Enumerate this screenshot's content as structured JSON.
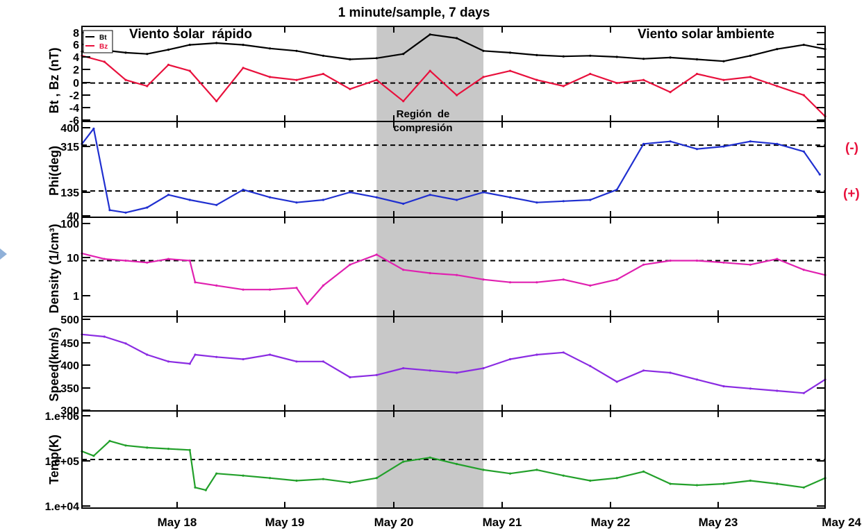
{
  "chart_data": {
    "type": "line",
    "title": "1 minute/sample, 7 days",
    "x_tick_labels": [
      "May 18",
      "May 19",
      "May 20",
      "May 21",
      "May 22",
      "May 23",
      "May 24"
    ],
    "shaded_region": {
      "x_start": "May 19 18:00",
      "x_end": "May 20 18:00",
      "color": "#c8c8c8"
    },
    "annotations": {
      "fast_wind": "Viento solar  rápido",
      "ambient_wind": "Viento solar ambiente",
      "compression_line1": "Región  de",
      "compression_line2": "compresión",
      "sector_negative": "(-)",
      "sector_positive": "(+)"
    },
    "panels": [
      {
        "id": "b",
        "ylabel": "Bt  , Bz  (nT)",
        "ylim": [
          -6,
          9
        ],
        "yticks": [
          "8",
          "6",
          "4",
          "2",
          "0",
          "-2",
          "-4",
          "-6"
        ],
        "reference_lines": [
          0
        ],
        "legend": [
          "Bt",
          "Bz"
        ],
        "series": [
          {
            "name": "Bt",
            "color": "#000000",
            "x": [
              16.99,
              17.2,
              17.4,
              17.6,
              17.8,
              18.0,
              18.25,
              18.5,
              18.75,
              19.0,
              19.25,
              19.5,
              19.75,
              20.0,
              20.25,
              20.5,
              20.75,
              21.0,
              21.25,
              21.5,
              21.75,
              22.0,
              22.25,
              22.5,
              22.75,
              23.0,
              23.25,
              23.5,
              23.75,
              23.95
            ],
            "y": [
              5.2,
              5.4,
              5.0,
              4.8,
              5.5,
              6.3,
              6.6,
              6.3,
              5.7,
              5.3,
              4.5,
              3.9,
              4.1,
              4.8,
              8.0,
              7.4,
              5.3,
              5.0,
              4.6,
              4.4,
              4.5,
              4.3,
              4.0,
              4.2,
              3.9,
              3.6,
              4.5,
              5.6,
              6.3,
              5.6
            ]
          },
          {
            "name": "Bz",
            "color": "#e8103c",
            "x": [
              16.99,
              17.2,
              17.4,
              17.6,
              17.8,
              18.0,
              18.25,
              18.5,
              18.75,
              19.0,
              19.25,
              19.5,
              19.75,
              20.0,
              20.25,
              20.5,
              20.75,
              21.0,
              21.25,
              21.5,
              21.75,
              22.0,
              22.25,
              22.5,
              22.75,
              23.0,
              23.25,
              23.5,
              23.75,
              23.95
            ],
            "y": [
              4.5,
              3.5,
              0.5,
              -0.5,
              3.0,
              2.0,
              -3.0,
              2.5,
              1.0,
              0.5,
              1.5,
              -1.0,
              0.5,
              -3.0,
              2.0,
              -2.0,
              1.0,
              2.0,
              0.5,
              -0.5,
              1.5,
              0.0,
              0.5,
              -1.5,
              1.5,
              0.5,
              1.0,
              -0.5,
              -2.0,
              -5.5
            ]
          }
        ]
      },
      {
        "id": "phi",
        "ylabel": "Phi(deg)",
        "ylim": [
          40,
          400
        ],
        "yticks": [
          "400",
          "315",
          "135",
          "40"
        ],
        "reference_lines": [
          315,
          135
        ],
        "series": [
          {
            "name": "",
            "color": "#1f2fd0",
            "x": [
              16.99,
              17.1,
              17.25,
              17.4,
              17.6,
              17.8,
              18.0,
              18.25,
              18.5,
              18.75,
              19.0,
              19.25,
              19.5,
              19.75,
              20.0,
              20.25,
              20.5,
              20.75,
              21.0,
              21.25,
              21.5,
              21.75,
              22.0,
              22.25,
              22.5,
              22.75,
              23.0,
              23.25,
              23.5,
              23.75,
              23.9
            ],
            "y": [
              320,
              380,
              60,
              50,
              70,
              120,
              100,
              80,
              140,
              110,
              90,
              100,
              130,
              110,
              85,
              120,
              100,
              130,
              110,
              90,
              95,
              100,
              140,
              320,
              330,
              300,
              310,
              330,
              320,
              290,
              200
            ]
          }
        ]
      },
      {
        "id": "density",
        "ylabel": "Density (1/cm³)",
        "ylim": [
          0.5,
          100
        ],
        "log_scale": true,
        "yticks": [
          "100",
          "10",
          "1"
        ],
        "reference_lines": [
          10
        ],
        "series": [
          {
            "name": "",
            "color": "#e020b0",
            "x": [
              16.99,
              17.2,
              17.4,
              17.6,
              17.8,
              18.0,
              18.05,
              18.25,
              18.5,
              18.75,
              19.0,
              19.1,
              19.25,
              19.5,
              19.75,
              20.0,
              20.25,
              20.5,
              20.75,
              21.0,
              21.25,
              21.5,
              21.75,
              22.0,
              22.25,
              22.5,
              22.75,
              23.0,
              23.25,
              23.5,
              23.75,
              23.95
            ],
            "y": [
              15,
              11,
              10,
              9,
              11,
              10,
              3,
              2.5,
              2,
              2,
              2.2,
              0.9,
              2.5,
              8,
              14,
              6,
              5,
              4.5,
              3.5,
              3,
              3,
              3.5,
              2.5,
              3.5,
              8,
              10,
              10,
              9,
              8,
              11,
              6,
              4.5
            ]
          }
        ]
      },
      {
        "id": "speed",
        "ylabel": "Speed(km/s)",
        "ylim": [
          300,
          500
        ],
        "yticks": [
          "500",
          "450",
          "400",
          "350",
          "300"
        ],
        "series": [
          {
            "name": "",
            "color": "#8a2be2",
            "x": [
              16.99,
              17.2,
              17.4,
              17.6,
              17.8,
              18.0,
              18.05,
              18.25,
              18.5,
              18.75,
              19.0,
              19.25,
              19.5,
              19.75,
              20.0,
              20.25,
              20.5,
              20.75,
              21.0,
              21.25,
              21.5,
              21.75,
              22.0,
              22.25,
              22.5,
              22.75,
              23.0,
              23.25,
              23.5,
              23.75,
              23.95
            ],
            "y": [
              465,
              460,
              445,
              420,
              405,
              400,
              420,
              415,
              410,
              420,
              405,
              405,
              370,
              375,
              390,
              385,
              380,
              390,
              410,
              420,
              425,
              395,
              360,
              385,
              380,
              365,
              350,
              345,
              340,
              335,
              365
            ]
          }
        ]
      },
      {
        "id": "temp",
        "ylabel": "Temp(K)",
        "ylim": [
          10000,
          1000000
        ],
        "log_scale": true,
        "yticks": [
          "1.e+06",
          "1.e+05",
          "1.e+04"
        ],
        "reference_lines": [
          100000
        ],
        "series": [
          {
            "name": "",
            "color": "#22a02a",
            "x": [
              16.99,
              17.1,
              17.25,
              17.4,
              17.6,
              17.8,
              18.0,
              18.05,
              18.15,
              18.25,
              18.5,
              18.75,
              19.0,
              19.25,
              19.5,
              19.75,
              20.0,
              20.25,
              20.5,
              20.75,
              21.0,
              21.25,
              21.5,
              21.75,
              22.0,
              22.25,
              22.5,
              22.75,
              23.0,
              23.25,
              23.5,
              23.75,
              23.95
            ],
            "y": [
              150000,
              120000,
              250000,
              200000,
              180000,
              170000,
              160000,
              25000,
              22000,
              50000,
              45000,
              40000,
              35000,
              38000,
              32000,
              40000,
              90000,
              110000,
              80000,
              60000,
              50000,
              60000,
              45000,
              35000,
              40000,
              55000,
              30000,
              28000,
              30000,
              35000,
              30000,
              25000,
              40000
            ]
          }
        ]
      }
    ]
  }
}
